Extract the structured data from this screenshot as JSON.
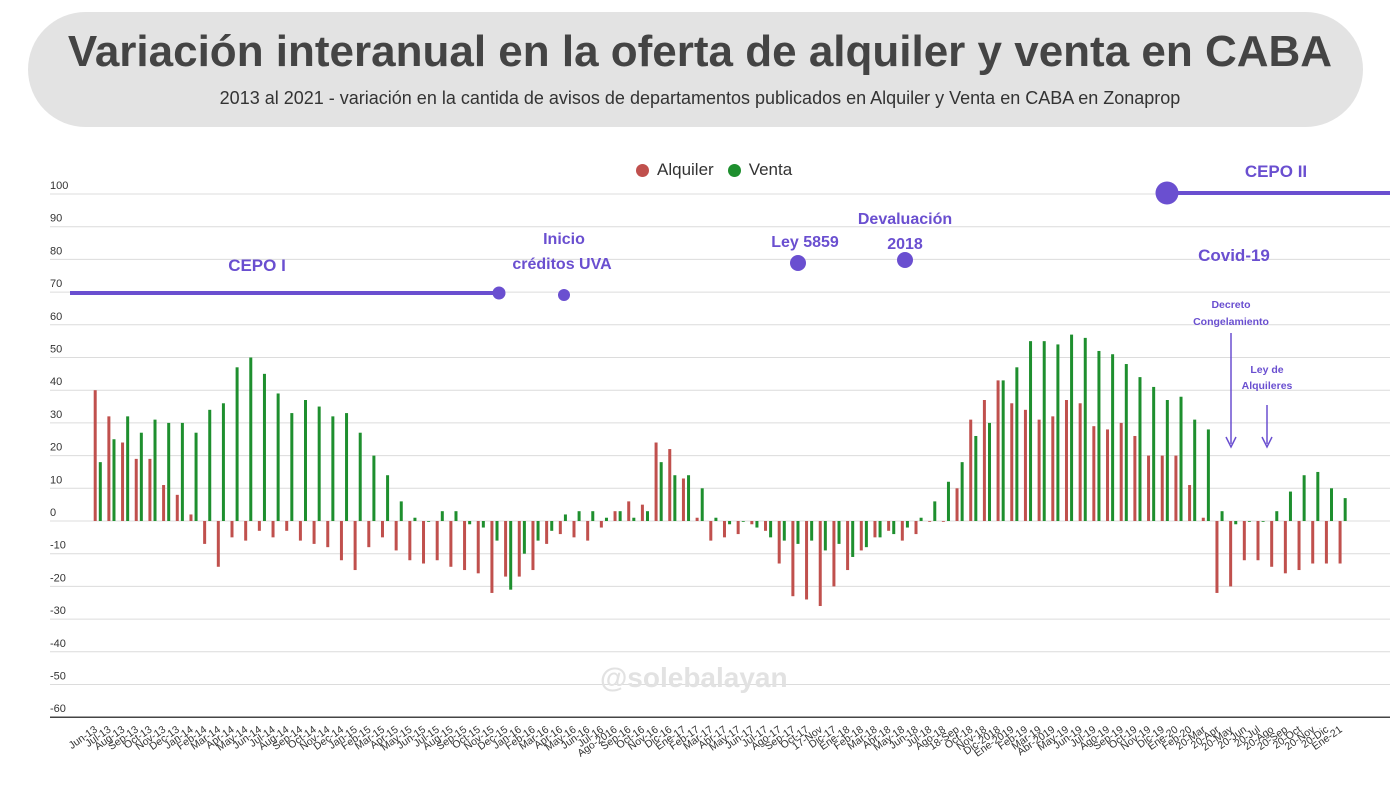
{
  "header": {
    "title": "Variación interanual en la oferta de alquiler y venta en CABA",
    "subtitle": "2013 al 2021 - variación en la cantida de avisos de departamentos publicados en Alquiler y Venta en CABA en Zonaprop"
  },
  "watermark": "@solebalayan",
  "colors": {
    "alquiler": "#c0504d",
    "venta": "#1e8f2e",
    "event": "#6a4fd0",
    "grid": "#dcdcdc"
  },
  "chart_data": {
    "type": "bar",
    "ylim": [
      -60,
      100
    ],
    "yticks": [
      100,
      90,
      80,
      70,
      60,
      50,
      40,
      30,
      20,
      10,
      0,
      -10,
      -20,
      -30,
      -40,
      -50,
      -60
    ],
    "legend": {
      "position": "top-center"
    },
    "categories": [
      "Jun-13",
      "Jul-13",
      "Aug-13",
      "Sep-13",
      "Oct-13",
      "Nov-13",
      "Dec-13",
      "Jan-14",
      "Feb-14",
      "Mar-14",
      "Apr-14",
      "May-14",
      "Jun-14",
      "Jul-14",
      "Aug-14",
      "Sep-14",
      "Oct-14",
      "Nov-14",
      "Dec-14",
      "Jan-15",
      "Feb-15",
      "Mar-15",
      "Apr-15",
      "May-15",
      "Jun-15",
      "Jul-15",
      "Aug-15",
      "Sep-15",
      "Oct-15",
      "Nov-15",
      "Dec-15",
      "Jan-16",
      "Feb-16",
      "Mar-16",
      "Apr-16",
      "May-16",
      "Jun-16",
      "Jul-16",
      "Ago-2016",
      "Sep-16",
      "Oct-16",
      "Nov-16",
      "Dic-16",
      "Ene-17",
      "Feb-17",
      "Mar-17",
      "Abr-17",
      "May-17",
      "Jun-17",
      "Jul-17",
      "Ago-17",
      "Sep-17",
      "Oct-17",
      "17-Nov",
      "Dic-17",
      "Ene-18",
      "Feb-18",
      "Mar-18",
      "Abr-18",
      "May-18",
      "Jun-18",
      "Jul-18",
      "Ago-18",
      "18-Sep",
      "Oct-18",
      "Nov-18",
      "Dic-2018",
      "Ene-2019",
      "Feb-19",
      "Mar-19",
      "Abr-2019",
      "May-19",
      "Jun-19",
      "Jul-19",
      "Ago-19",
      "Sep-19",
      "Oct-19",
      "Nov-19",
      "Dic-19",
      "Ene-20",
      "Feb-20",
      "20-Mar",
      "20-Apr",
      "20-May",
      "20-Jun",
      "20-Jul",
      "20-Ago",
      "20-Sep",
      "20-Oct",
      "20-Nov",
      "20-Dic",
      "Ene-21"
    ],
    "series": [
      {
        "name": "Alquiler",
        "values": [
          40,
          32,
          24,
          19,
          19,
          11,
          8,
          2,
          -7,
          -14,
          -5,
          -6,
          -3,
          -5,
          -3,
          -6,
          -7,
          -8,
          -12,
          -15,
          -8,
          -5,
          -9,
          -12,
          -13,
          -12,
          -14,
          -15,
          -16,
          -22,
          -17,
          -17,
          -15,
          -7,
          -4,
          -5,
          -6,
          -2,
          3,
          6,
          5,
          24,
          22,
          13,
          1,
          -6,
          -5,
          -4,
          -1,
          -3,
          -13,
          -23,
          -24,
          -26,
          -20,
          -15,
          -9,
          -5,
          -3,
          -6,
          -4,
          0,
          0,
          10,
          31,
          37,
          43,
          36,
          34,
          31,
          32,
          37,
          36,
          29,
          28,
          30,
          26,
          20,
          20,
          20,
          11,
          1,
          -22,
          -20,
          -12,
          -12,
          -14,
          -16,
          -15,
          -13,
          -13,
          -13
        ]
      },
      {
        "name": "Venta",
        "values": [
          18,
          25,
          32,
          27,
          31,
          30,
          30,
          27,
          34,
          36,
          47,
          50,
          45,
          39,
          33,
          37,
          35,
          32,
          33,
          27,
          20,
          14,
          6,
          1,
          0,
          3,
          3,
          -1,
          -2,
          -6,
          -21,
          -10,
          -6,
          -3,
          2,
          3,
          3,
          1,
          3,
          1,
          3,
          18,
          14,
          14,
          10,
          1,
          -1,
          0,
          -2,
          -5,
          -6,
          -7,
          -6,
          -9,
          -7,
          -11,
          -8,
          -5,
          -4,
          -2,
          1,
          6,
          12,
          18,
          26,
          30,
          43,
          47,
          55,
          55,
          54,
          57,
          56,
          52,
          51,
          48,
          44,
          41,
          37,
          38,
          31,
          28,
          3,
          -1,
          0,
          0,
          3,
          9,
          14,
          15,
          10,
          7
        ]
      }
    ],
    "annotations": [
      {
        "label": "CEPO I",
        "kind": "period"
      },
      {
        "label": "Inicio créditos UVA",
        "lines": [
          "Inicio",
          "créditos UVA"
        ],
        "kind": "event"
      },
      {
        "label": "Ley 5859",
        "kind": "event"
      },
      {
        "label": "Devaluación 2018",
        "lines": [
          "Devaluación",
          "2018"
        ],
        "kind": "event"
      },
      {
        "label": "CEPO II",
        "kind": "period"
      },
      {
        "label": "Covid-19",
        "kind": "event"
      },
      {
        "label": "Decreto Congelamiento",
        "lines": [
          "Decreto",
          "Congelamiento"
        ],
        "kind": "arrow"
      },
      {
        "label": "Ley de Alquileres",
        "lines": [
          "Ley de",
          "Alquileres"
        ],
        "kind": "arrow"
      }
    ]
  }
}
